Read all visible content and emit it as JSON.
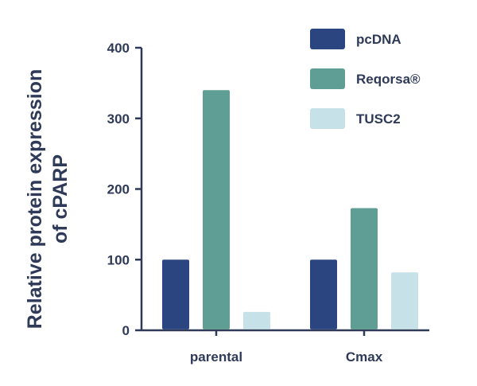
{
  "chart_data": {
    "type": "bar",
    "title": "",
    "xlabel": "",
    "ylabel_lines": [
      "Relative protein expression",
      "of cPARP"
    ],
    "ylim": [
      0,
      400
    ],
    "yticks": [
      0,
      100,
      200,
      300,
      400
    ],
    "categories": [
      "parental",
      "Cmax"
    ],
    "series": [
      {
        "name": "pcDNA",
        "color": "#2a4580",
        "values": [
          100,
          100
        ]
      },
      {
        "name": "Reqorsa®",
        "color": "#5f9e94",
        "values": [
          340,
          173
        ]
      },
      {
        "name": "TUSC2",
        "color": "#c6e2e8",
        "values": [
          26,
          82
        ]
      }
    ],
    "legend_position": "top-right",
    "grid": false
  }
}
